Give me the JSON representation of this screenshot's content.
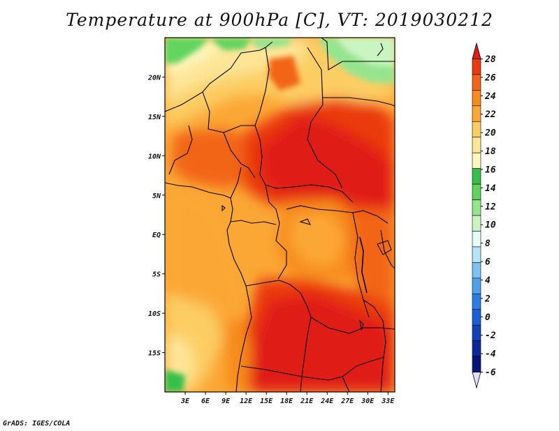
{
  "title": "Temperature at 900hPa [C], VT: 2019030212",
  "credit": "GrADS: IGES/COLA",
  "map": {
    "lon_range": [
      0,
      34
    ],
    "lat_range": [
      -20,
      25
    ],
    "lon_ticks": [
      "3E",
      "6E",
      "9E",
      "12E",
      "15E",
      "18E",
      "21E",
      "24E",
      "27E",
      "30E",
      "33E"
    ],
    "lat_ticks": [
      "20N",
      "15N",
      "10N",
      "5N",
      "EQ",
      "5S",
      "10S",
      "15S"
    ]
  },
  "colorbar": {
    "levels": [
      "28",
      "26",
      "24",
      "22",
      "20",
      "18",
      "16",
      "14",
      "12",
      "10",
      "8",
      "6",
      "4",
      "2",
      "0",
      "-2",
      "-4",
      "-6"
    ],
    "colors": [
      "#e01a14",
      "#ea3b10",
      "#f26518",
      "#f78b1e",
      "#fba736",
      "#fccd63",
      "#fde596",
      "#fdf6bd",
      "#34c04a",
      "#62d45e",
      "#96e58e",
      "#c9f5c2",
      "#e6fbf6",
      "#b6e3f9",
      "#7cc3f3",
      "#4fa1ea",
      "#2c7de2",
      "#1860d4",
      "#0f42b8",
      "#0a2898",
      "#07157a",
      "#ddddf6"
    ]
  }
}
